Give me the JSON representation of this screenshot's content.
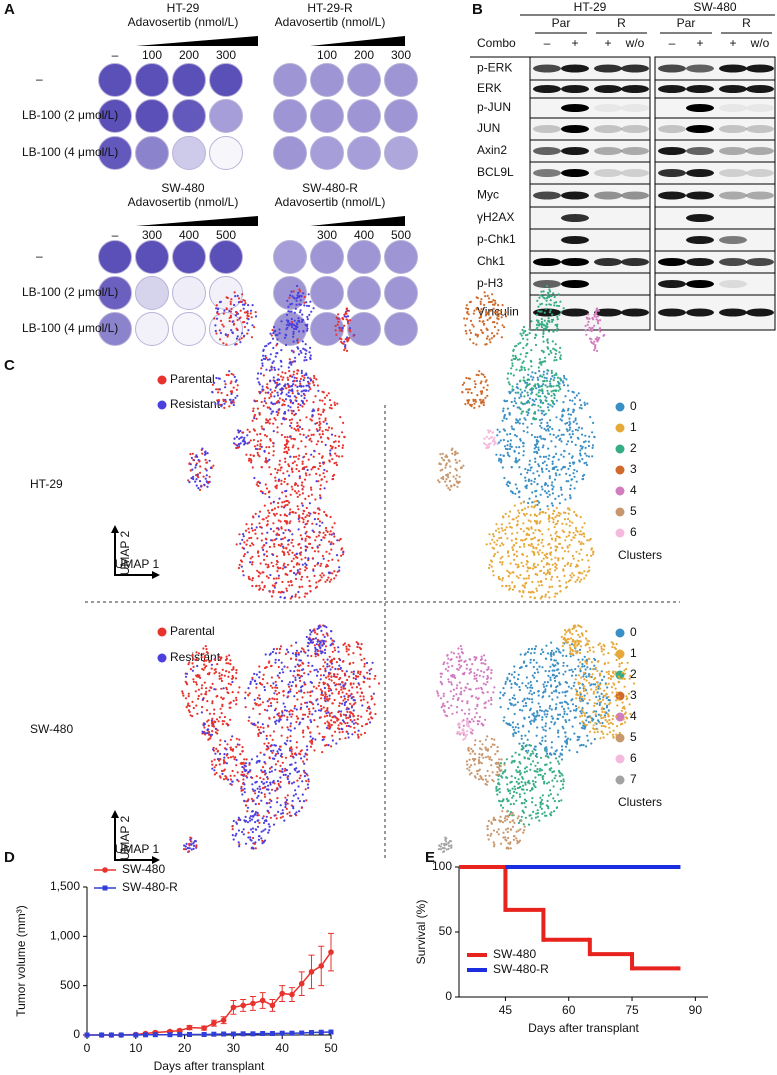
{
  "panel_a": {
    "label": "A",
    "blocks": [
      {
        "title": "HT-29",
        "subtitle": "Adavosertib (nmol/L)",
        "columns": [
          "–",
          "100",
          "200",
          "300"
        ]
      },
      {
        "title": "HT-29-R",
        "subtitle": "Adavosertib (nmol/L)",
        "columns": [
          "100",
          "200",
          "300"
        ]
      },
      {
        "title": "SW-480",
        "subtitle": "Adavosertib (nmol/L)",
        "columns": [
          "–",
          "300",
          "400",
          "500"
        ]
      },
      {
        "title": "SW-480-R",
        "subtitle": "Adavosertib (nmol/L)",
        "columns": [
          "300",
          "400",
          "500"
        ]
      }
    ],
    "rows_top": [
      "–",
      "LB-100 (2 μmol/L)",
      "LB-100 (4 μmol/L)"
    ],
    "rows_bottom": [
      "–",
      "LB-100 (2 μmol/L)",
      "LB-100 (4 μmol/L)"
    ]
  },
  "panel_b": {
    "label": "B",
    "cell_lines": [
      "HT-29",
      "SW-480"
    ],
    "groups": [
      "Par",
      "R",
      "Par",
      "R"
    ],
    "combo_label": "Combo",
    "combo": [
      "–",
      "+",
      "+",
      "w/o",
      "–",
      "+",
      "+",
      "w/o"
    ],
    "proteins": [
      "p-ERK",
      "ERK",
      "p-JUN",
      "JUN",
      "Axin2",
      "BCL9L",
      "Myc",
      "γH2AX",
      "p-Chk1",
      "Chk1",
      "p-H3",
      "Vinculin"
    ]
  },
  "panel_c": {
    "label": "C",
    "rows": [
      {
        "cell_line": "HT-29",
        "legend": [
          {
            "name": "Parental",
            "color": "#e8322d"
          },
          {
            "name": "Resistant",
            "color": "#4b3fe0"
          }
        ],
        "axis_x": "UMAP 1",
        "axis_y": "UMAP 2",
        "clusters_title": "Clusters",
        "clusters": [
          {
            "name": "0",
            "color": "#3a8fc4"
          },
          {
            "name": "1",
            "color": "#e6a838"
          },
          {
            "name": "2",
            "color": "#36ad85"
          },
          {
            "name": "3",
            "color": "#cf6a2a"
          },
          {
            "name": "4",
            "color": "#d27cc0"
          },
          {
            "name": "5",
            "color": "#c8976d"
          },
          {
            "name": "6",
            "color": "#f4b9dc"
          }
        ]
      },
      {
        "cell_line": "SW-480",
        "legend": [
          {
            "name": "Parental",
            "color": "#e8322d"
          },
          {
            "name": "Resistant",
            "color": "#4b3fe0"
          }
        ],
        "axis_x": "UMAP 1",
        "axis_y": "UMAP 2",
        "clusters_title": "Clusters",
        "clusters": [
          {
            "name": "0",
            "color": "#3a8fc4"
          },
          {
            "name": "1",
            "color": "#e6a838"
          },
          {
            "name": "2",
            "color": "#36ad85"
          },
          {
            "name": "3",
            "color": "#cf6a2a"
          },
          {
            "name": "4",
            "color": "#d27cc0"
          },
          {
            "name": "5",
            "color": "#c8976d"
          },
          {
            "name": "6",
            "color": "#f4b9dc"
          },
          {
            "name": "7",
            "color": "#a3a3a3"
          }
        ]
      }
    ]
  },
  "chart_data": [
    {
      "panel": "D",
      "type": "line",
      "x_label": "Days after transplant",
      "y_label": "Tumor volume (mm³)",
      "xlim": [
        0,
        50
      ],
      "xticks": [
        0,
        10,
        20,
        30,
        40,
        50
      ],
      "ylim": [
        0,
        1500
      ],
      "yticks": [
        0,
        500,
        {
          "value": 1000,
          "label": "1,000"
        },
        {
          "value": 1500,
          "label": "1,500"
        }
      ],
      "legend": "upper left",
      "series": [
        {
          "name": "SW-480",
          "color": "#e8322d",
          "marker": "circle",
          "x": [
            0,
            3,
            5,
            7,
            10,
            12,
            14,
            17,
            19,
            21,
            24,
            26,
            28,
            30,
            32,
            34,
            36,
            38,
            40,
            42,
            44,
            46,
            48,
            50
          ],
          "values": [
            0,
            0,
            0,
            0,
            5,
            15,
            25,
            35,
            45,
            75,
            70,
            120,
            150,
            280,
            300,
            320,
            350,
            300,
            420,
            410,
            520,
            640,
            700,
            840
          ],
          "errors": [
            0,
            0,
            0,
            0,
            3,
            5,
            8,
            10,
            12,
            20,
            20,
            30,
            35,
            70,
            60,
            70,
            80,
            60,
            80,
            70,
            120,
            170,
            200,
            190
          ]
        },
        {
          "name": "SW-480-R",
          "color": "#2f3fd8",
          "marker": "square",
          "x": [
            0,
            3,
            5,
            7,
            10,
            12,
            14,
            17,
            19,
            21,
            24,
            26,
            28,
            30,
            32,
            34,
            36,
            38,
            40,
            42,
            44,
            46,
            48,
            50
          ],
          "values": [
            0,
            0,
            0,
            0,
            0,
            2,
            3,
            3,
            4,
            5,
            5,
            8,
            10,
            10,
            12,
            12,
            15,
            15,
            18,
            18,
            20,
            25,
            28,
            30
          ]
        }
      ]
    },
    {
      "panel": "E",
      "type": "step",
      "x_label": "Days after transplant",
      "y_label": "Survival (%)",
      "xlim": [
        34,
        93
      ],
      "xticks": [
        45,
        60,
        75,
        90
      ],
      "ylim": [
        0,
        100
      ],
      "yticks": [
        0,
        50,
        100
      ],
      "legend": "lower left",
      "series": [
        {
          "name": "SW-480",
          "color": "#e8221c",
          "x": [
            34,
            45,
            54,
            65,
            75,
            86
          ],
          "values": [
            100,
            67,
            44,
            33,
            22,
            22
          ]
        },
        {
          "name": "SW-480-R",
          "color": "#1c2fe0",
          "x": [
            45,
            86
          ],
          "values": [
            100,
            100
          ]
        }
      ]
    }
  ]
}
